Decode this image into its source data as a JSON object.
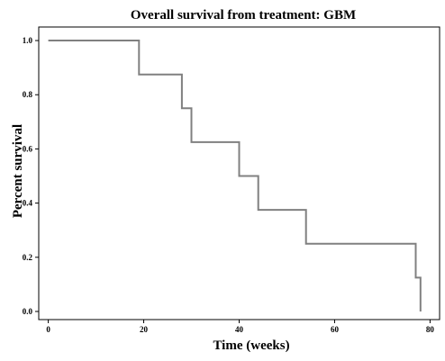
{
  "chart_data": {
    "type": "line",
    "step": true,
    "title": "Overall survival from treatment: GBM",
    "xlabel": "Time (weeks)",
    "ylabel": "Percent survival",
    "xlim": [
      -2,
      82
    ],
    "ylim": [
      -0.03,
      1.05
    ],
    "xticks": [
      0,
      20,
      40,
      60,
      80
    ],
    "xtick_labels": [
      "0",
      "20",
      "40",
      "60",
      "80"
    ],
    "yticks": [
      0.0,
      0.2,
      0.4,
      0.6,
      0.8,
      1.0
    ],
    "ytick_labels": [
      "0.0",
      "0.2",
      "0.4",
      "0.6",
      "0.8",
      "1.0"
    ],
    "grid": false,
    "legend": "none",
    "line_color": "#808080",
    "series": [
      {
        "x": [
          0,
          19,
          19,
          28,
          28,
          30,
          30,
          40,
          40,
          44,
          44,
          54,
          54,
          77,
          77,
          78,
          78
        ],
        "y": [
          1.0,
          1.0,
          0.875,
          0.875,
          0.75,
          0.75,
          0.625,
          0.625,
          0.5,
          0.5,
          0.375,
          0.375,
          0.25,
          0.25,
          0.125,
          0.125,
          0.0
        ]
      }
    ]
  }
}
